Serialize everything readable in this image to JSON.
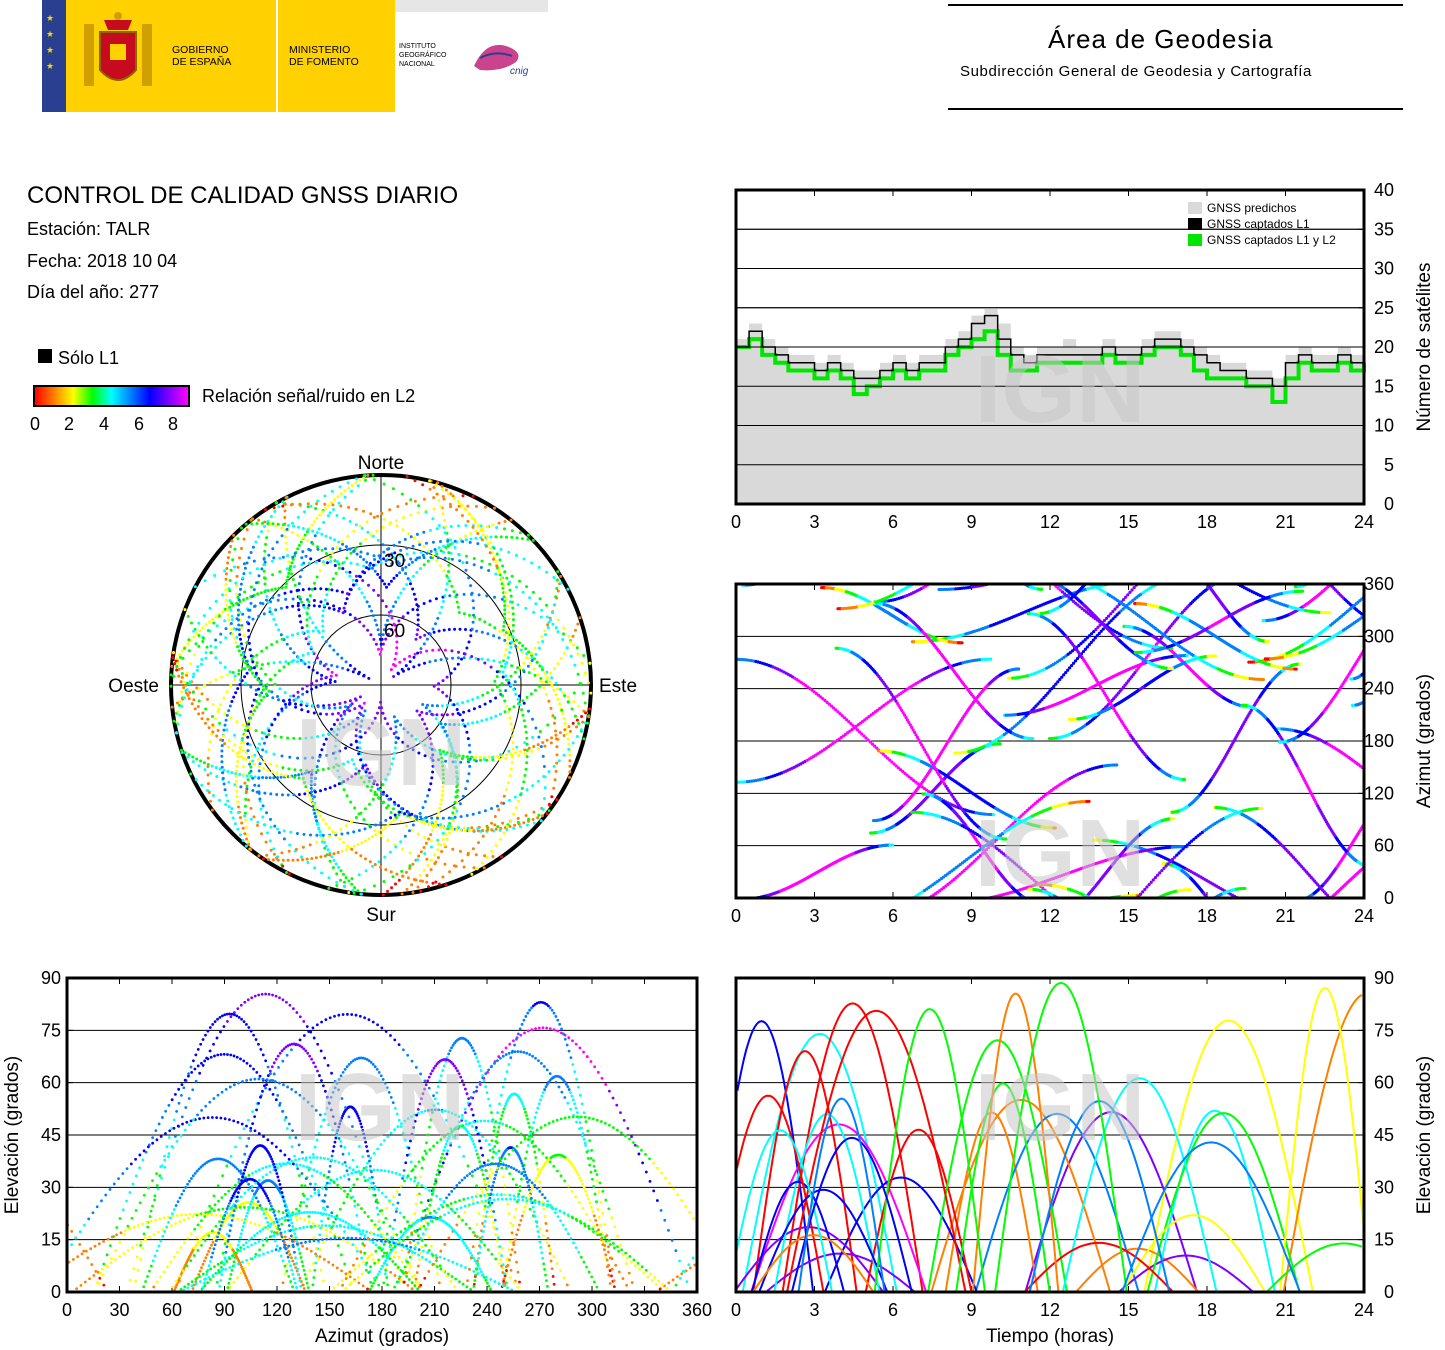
{
  "header": {
    "gobierno": [
      "GOBIERNO",
      "DE ESPAÑA"
    ],
    "ministerio": [
      "MINISTERIO",
      "DE FOMENTO"
    ],
    "instituto": [
      "INSTITUTO",
      "GEOGRÁFICO",
      "NACIONAL"
    ],
    "cnig": "cnig",
    "area_title": "Área de Geodesia",
    "area_subtitle": "Subdirección General de Geodesia y Cartografía"
  },
  "info": {
    "title": "CONTROL DE CALIDAD GNSS DIARIO",
    "station": "Estación: TALR",
    "date": "Fecha: 2018 10 04",
    "doy": "Día del año: 277",
    "solo_l1": "Sólo L1",
    "snr_label": "Relación señal/ruido en L2",
    "snr_ticks": [
      "0",
      "2",
      "4",
      "6",
      "8"
    ]
  },
  "watermark": "IGN",
  "colors": {
    "predicted": "#d9d9d9",
    "l1": "#000000",
    "l1l2": "#00e600",
    "snr_scale": [
      "#ff0000",
      "#ff8000",
      "#ffff00",
      "#00ff00",
      "#00ffff",
      "#0080ff",
      "#0000ff",
      "#8000ff",
      "#ff00ff"
    ]
  },
  "chart_data": [
    {
      "id": "satellite-count",
      "type": "line",
      "x_label": "",
      "y_label": "Número de satélites",
      "x_ticks": [
        "0",
        "3",
        "6",
        "9",
        "12",
        "15",
        "18",
        "21",
        "24"
      ],
      "y_ticks": [
        "0",
        "5",
        "10",
        "15",
        "20",
        "25",
        "30",
        "35",
        "40"
      ],
      "xlim": [
        0,
        24
      ],
      "ylim": [
        0,
        40
      ],
      "grid": "horizontal",
      "legend_position": "top-right",
      "x": [
        0,
        0.5,
        1,
        1.5,
        2,
        2.5,
        3,
        3.5,
        4,
        4.5,
        5,
        5.5,
        6,
        6.5,
        7,
        7.5,
        8,
        8.5,
        9,
        9.5,
        10,
        10.5,
        11,
        11.5,
        12,
        12.5,
        13,
        13.5,
        14,
        14.5,
        15,
        15.5,
        16,
        16.5,
        17,
        17.5,
        18,
        18.5,
        19,
        19.5,
        20,
        20.5,
        21,
        21.5,
        22,
        22.5,
        23,
        23.5,
        24
      ],
      "series": [
        {
          "name": "GNSS predichos",
          "values": [
            21,
            23,
            21,
            20,
            19,
            19,
            18,
            19,
            18,
            17,
            17,
            18,
            19,
            18,
            19,
            19,
            21,
            22,
            24,
            25,
            23,
            20,
            19,
            20,
            20,
            21,
            20,
            20,
            21,
            20,
            20,
            21,
            22,
            22,
            21,
            20,
            19,
            18,
            18,
            17,
            17,
            16,
            19,
            20,
            19,
            19,
            20,
            19,
            20
          ]
        },
        {
          "name": "GNSS captados L1",
          "values": [
            20,
            22,
            20,
            19,
            18,
            18,
            17,
            18,
            17,
            16,
            16,
            17,
            18,
            17,
            18,
            18,
            20,
            21,
            23,
            24,
            21,
            19,
            18,
            19,
            19,
            19,
            19,
            19,
            20,
            19,
            19,
            20,
            21,
            21,
            20,
            19,
            18,
            17,
            17,
            16,
            16,
            15,
            18,
            19,
            18,
            18,
            19,
            18,
            19
          ]
        },
        {
          "name": "GNSS captados L1 y L2",
          "values": [
            20,
            21,
            19,
            18,
            17,
            17,
            16,
            17,
            16,
            14,
            15,
            16,
            17,
            16,
            17,
            17,
            19,
            20,
            21,
            22,
            19,
            17,
            17,
            18,
            18,
            18,
            18,
            18,
            19,
            18,
            18,
            19,
            20,
            20,
            19,
            17,
            16,
            16,
            16,
            15,
            15,
            13,
            16,
            18,
            17,
            17,
            18,
            17,
            18
          ]
        }
      ]
    },
    {
      "id": "azimuth-time",
      "type": "scatter",
      "x_label": "",
      "y_label": "Azimut (grados)",
      "x_ticks": [
        "0",
        "3",
        "6",
        "9",
        "12",
        "15",
        "18",
        "21",
        "24"
      ],
      "y_ticks": [
        "0",
        "60",
        "120",
        "180",
        "240",
        "300",
        "360"
      ],
      "xlim": [
        0,
        24
      ],
      "ylim": [
        0,
        360
      ],
      "grid": "horizontal",
      "satellites": 40,
      "points_per_track": 120
    },
    {
      "id": "elevation-azimuth",
      "type": "scatter",
      "x_label": "Azimut (grados)",
      "y_label": "Elevación (grados)",
      "x_ticks": [
        "0",
        "30",
        "60",
        "90",
        "120",
        "150",
        "180",
        "210",
        "240",
        "270",
        "300",
        "330",
        "360"
      ],
      "y_ticks": [
        "0",
        "15",
        "30",
        "45",
        "60",
        "75",
        "90"
      ],
      "xlim": [
        0,
        360
      ],
      "ylim": [
        0,
        90
      ],
      "grid": "horizontal",
      "satellites": 40
    },
    {
      "id": "elevation-time",
      "type": "line",
      "x_label": "Tiempo (horas)",
      "y_label": "Elevación (grados)",
      "x_ticks": [
        "0",
        "3",
        "6",
        "9",
        "12",
        "15",
        "18",
        "21",
        "24"
      ],
      "y_ticks": [
        "0",
        "15",
        "30",
        "45",
        "60",
        "75",
        "90"
      ],
      "xlim": [
        0,
        24
      ],
      "ylim": [
        0,
        90
      ],
      "grid": "horizontal",
      "satellites": 40
    },
    {
      "id": "skyplot",
      "type": "scatter",
      "directions": {
        "north": "Norte",
        "south": "Sur",
        "east": "Este",
        "west": "Oeste"
      },
      "rings": [
        "30",
        "60"
      ],
      "satellites": 40
    }
  ]
}
